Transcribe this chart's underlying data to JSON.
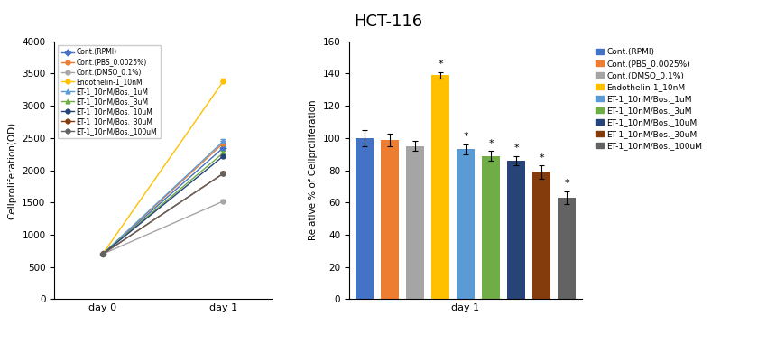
{
  "title": "HCT-116",
  "series_labels": [
    "Cont.(RPMI)",
    "Cont.(PBS_0.0025%)",
    "Cont.(DMSO_0.1%)",
    "Endothelin-1_10nM",
    "ET-1_10nM/Bos._1uM",
    "ET-1_10nM/Bos._3uM",
    "ET-1_10nM/Bos._10uM",
    "ET-1_10nM/Bos._30uM",
    "ET-1_10nM/Bos._100uM"
  ],
  "line_colors": [
    "#4472C4",
    "#ED7D31",
    "#A5A5A5",
    "#FFC000",
    "#5B9BD5",
    "#70AD47",
    "#264478",
    "#843C0C",
    "#636363"
  ],
  "line_markers": [
    "D",
    "o",
    "o",
    "o",
    "^",
    "^",
    "o",
    "o",
    "o"
  ],
  "line_day0": [
    700,
    700,
    700,
    700,
    700,
    700,
    700,
    700,
    700
  ],
  "line_day1": [
    2350,
    2420,
    1520,
    3380,
    2450,
    2270,
    2220,
    1950,
    1950
  ],
  "line_day1_errors": [
    30,
    30,
    20,
    40,
    35,
    30,
    30,
    30,
    30
  ],
  "line_ylabel": "Cellproliferation(OD)",
  "line_xticks": [
    "day 0",
    "day 1"
  ],
  "line_ylim": [
    0,
    4000
  ],
  "line_yticks": [
    0,
    500,
    1000,
    1500,
    2000,
    2500,
    3000,
    3500,
    4000
  ],
  "bar_values": [
    100,
    99,
    95,
    139,
    93,
    89,
    86,
    79,
    63
  ],
  "bar_errors": [
    5,
    4,
    3,
    2,
    3,
    3,
    3,
    4,
    4
  ],
  "bar_colors": [
    "#4472C4",
    "#ED7D31",
    "#A5A5A5",
    "#FFC000",
    "#5B9BD5",
    "#70AD47",
    "#264478",
    "#843C0C",
    "#636363"
  ],
  "bar_ylabel": "Relative % of Cellproliferation",
  "bar_xlabel": "day 1",
  "bar_ylim": [
    0,
    160
  ],
  "bar_yticks": [
    0,
    20,
    40,
    60,
    80,
    100,
    120,
    140,
    160
  ],
  "bar_star": [
    false,
    false,
    false,
    true,
    true,
    true,
    true,
    true,
    true
  ]
}
